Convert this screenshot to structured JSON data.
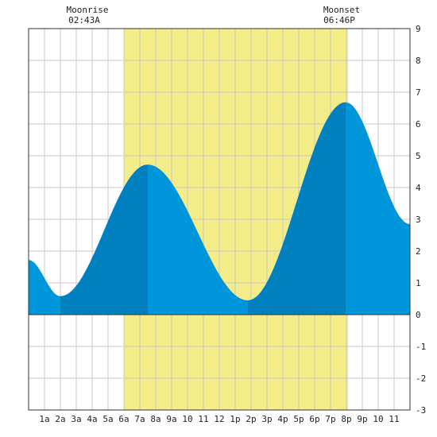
{
  "chart_data": {
    "type": "area",
    "title": "",
    "xlabel": "",
    "ylabel": "",
    "x_range": [
      0,
      24
    ],
    "ylim": [
      -3,
      9
    ],
    "y_ticks": [
      -3,
      -2,
      -1,
      0,
      1,
      2,
      3,
      4,
      5,
      6,
      7,
      8,
      9
    ],
    "x_tick_labels": [
      {
        "x": 1,
        "label": "1a"
      },
      {
        "x": 2,
        "label": "2a"
      },
      {
        "x": 3,
        "label": "3a"
      },
      {
        "x": 4,
        "label": "4a"
      },
      {
        "x": 5,
        "label": "5a"
      },
      {
        "x": 6,
        "label": "6a"
      },
      {
        "x": 7,
        "label": "7a"
      },
      {
        "x": 8,
        "label": "8a"
      },
      {
        "x": 9,
        "label": "9a"
      },
      {
        "x": 10,
        "label": "10"
      },
      {
        "x": 11,
        "label": "11"
      },
      {
        "x": 12,
        "label": "12"
      },
      {
        "x": 13,
        "label": "1p"
      },
      {
        "x": 14,
        "label": "2p"
      },
      {
        "x": 15,
        "label": "3p"
      },
      {
        "x": 16,
        "label": "4p"
      },
      {
        "x": 17,
        "label": "5p"
      },
      {
        "x": 18,
        "label": "6p"
      },
      {
        "x": 19,
        "label": "7p"
      },
      {
        "x": 20,
        "label": "8p"
      },
      {
        "x": 21,
        "label": "9p"
      },
      {
        "x": 22,
        "label": "10"
      },
      {
        "x": 23,
        "label": "11"
      }
    ],
    "grid": true,
    "tide_extremes": [
      {
        "time": 0.0,
        "height": 1.72,
        "type": "start"
      },
      {
        "time": 2.0,
        "height": 0.58,
        "type": "low"
      },
      {
        "time": 7.5,
        "height": 4.72,
        "type": "high"
      },
      {
        "time": 13.8,
        "height": 0.45,
        "type": "low"
      },
      {
        "time": 19.95,
        "height": 6.68,
        "type": "high"
      },
      {
        "time": 24.0,
        "height": 2.85,
        "type": "end"
      }
    ],
    "highlight_band": {
      "start": 6.0,
      "end": 20.1
    },
    "dark_segments": [
      [
        2.0,
        7.5
      ],
      [
        13.8,
        19.95
      ]
    ],
    "colors": {
      "water": "#0096DC",
      "water_dark": "#0080BE",
      "band": "#F3EC88",
      "grid": "#c8c8c8",
      "axis": "#333333"
    },
    "annotations": [
      {
        "name": "moonrise",
        "title": "Moonrise",
        "time_label": "02:43A",
        "x": 3.7
      },
      {
        "name": "moonset",
        "title": "Moonset",
        "time_label": "06:46P",
        "x": 19.6
      }
    ]
  }
}
